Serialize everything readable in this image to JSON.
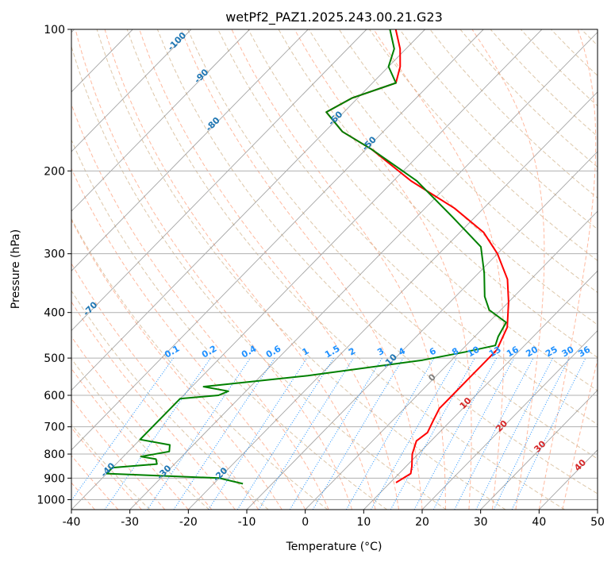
{
  "chart_data": {
    "type": "line",
    "subtype": "skew-t log-p diagram",
    "title": "wetPf2_PAZ1.2025.243.00.21.G23",
    "xlabel": "Temperature (°C)",
    "ylabel": "Pressure (hPa)",
    "xlim": [
      -40,
      50
    ],
    "ylim": [
      1050,
      100
    ],
    "y_scale": "log",
    "grid": true,
    "x_ticks": [
      "-40",
      "-30",
      "-20",
      "-10",
      "0",
      "10",
      "20",
      "30",
      "40",
      "50"
    ],
    "y_ticks": [
      "100",
      "200",
      "300",
      "400",
      "500",
      "600",
      "700",
      "800",
      "900",
      "1000"
    ],
    "isotherm_labels": [
      "-100",
      "-90",
      "-80",
      "-70",
      "-60",
      "-50",
      "-40",
      "-30",
      "-20",
      "-10",
      "0",
      "10",
      "20",
      "30",
      "40"
    ],
    "mixing_ratio_labels": [
      "0.1",
      "0.2",
      "0.4",
      "0.6",
      "1",
      "1.5",
      "2",
      "3",
      "4",
      "6",
      "8",
      "10",
      "13",
      "16",
      "20",
      "25",
      "30",
      "36"
    ],
    "colors": {
      "temperature": "#ff0000",
      "dewpoint": "#008000",
      "isotherm_label_cold": "#1f77b4",
      "isotherm_label_zero": "#808080",
      "isotherm_label_warm": "#d62728",
      "mixing_ratio": "#1e90ff",
      "dry_adiabat": "#d2b48c",
      "moist_adiabat": "#ff7f50",
      "isotherm_line": "#808080",
      "grid": "#b0b0b0"
    },
    "series": [
      {
        "name": "Temperature",
        "points": [
          {
            "T": 11,
            "p": 920
          },
          {
            "T": 12,
            "p": 880
          },
          {
            "T": 11,
            "p": 850
          },
          {
            "T": 9,
            "p": 800
          },
          {
            "T": 7.5,
            "p": 750
          },
          {
            "T": 8,
            "p": 720
          },
          {
            "T": 7,
            "p": 680
          },
          {
            "T": 6,
            "p": 640
          },
          {
            "T": 6,
            "p": 600
          },
          {
            "T": 6,
            "p": 550
          },
          {
            "T": 6,
            "p": 520
          },
          {
            "T": 6,
            "p": 480
          },
          {
            "T": 4,
            "p": 430
          },
          {
            "T": 0,
            "p": 380
          },
          {
            "T": -4,
            "p": 340
          },
          {
            "T": -10,
            "p": 300
          },
          {
            "T": -16,
            "p": 270
          },
          {
            "T": -25,
            "p": 240
          },
          {
            "T": -37,
            "p": 210
          },
          {
            "T": -49,
            "p": 180
          },
          {
            "T": -57,
            "p": 165
          },
          {
            "T": -63,
            "p": 150
          },
          {
            "T": -61,
            "p": 140
          },
          {
            "T": -56,
            "p": 130
          },
          {
            "T": -58,
            "p": 120
          },
          {
            "T": -61,
            "p": 110
          },
          {
            "T": -65,
            "p": 100
          }
        ]
      },
      {
        "name": "Dewpoint",
        "points": [
          {
            "T": -15,
            "p": 925
          },
          {
            "T": -20,
            "p": 900
          },
          {
            "T": -40,
            "p": 880
          },
          {
            "T": -40,
            "p": 855
          },
          {
            "T": -33,
            "p": 840
          },
          {
            "T": -34,
            "p": 820
          },
          {
            "T": -37,
            "p": 810
          },
          {
            "T": -33,
            "p": 790
          },
          {
            "T": -34,
            "p": 765
          },
          {
            "T": -40,
            "p": 745
          },
          {
            "T": -40,
            "p": 610
          },
          {
            "T": -34,
            "p": 600
          },
          {
            "T": -33,
            "p": 588
          },
          {
            "T": -38,
            "p": 575
          },
          {
            "T": -22,
            "p": 545
          },
          {
            "T": -5,
            "p": 505
          },
          {
            "T": 1,
            "p": 485
          },
          {
            "T": 5,
            "p": 470
          },
          {
            "T": 4,
            "p": 450
          },
          {
            "T": 3,
            "p": 420
          },
          {
            "T": -2,
            "p": 395
          },
          {
            "T": -5,
            "p": 370
          },
          {
            "T": -9,
            "p": 330
          },
          {
            "T": -14,
            "p": 290
          },
          {
            "T": -24,
            "p": 250
          },
          {
            "T": -36,
            "p": 210
          },
          {
            "T": -49,
            "p": 180
          },
          {
            "T": -57,
            "p": 165
          },
          {
            "T": -63,
            "p": 150
          },
          {
            "T": -61,
            "p": 140
          },
          {
            "T": -56,
            "p": 130
          },
          {
            "T": -60,
            "p": 120
          },
          {
            "T": -62,
            "p": 110
          },
          {
            "T": -66,
            "p": 100
          }
        ]
      }
    ]
  }
}
